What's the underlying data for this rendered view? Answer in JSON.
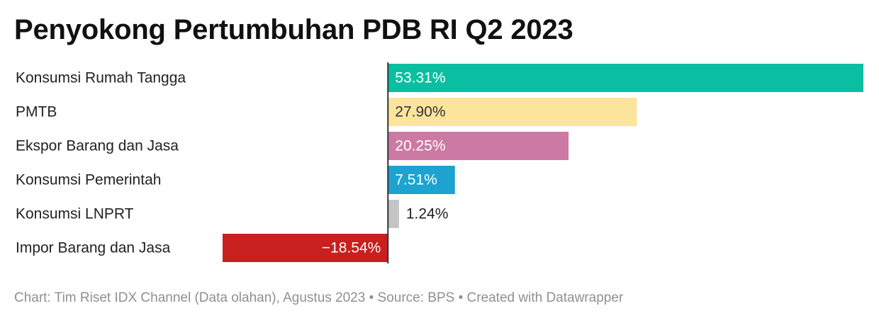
{
  "chart_data": {
    "type": "bar",
    "orientation": "horizontal",
    "title": "Penyokong Pertumbuhan PDB RI Q2 2023",
    "categories": [
      "Konsumsi Rumah Tangga",
      "PMTB",
      "Ekspor Barang dan Jasa",
      "Konsumsi Pemerintah",
      "Konsumsi LNPRT",
      "Impor Barang dan Jasa"
    ],
    "values": [
      53.31,
      27.9,
      20.25,
      7.51,
      1.24,
      -18.54
    ],
    "value_labels": [
      "53.31%",
      "27.90%",
      "20.25%",
      "7.51%",
      "1.24%",
      "−18.54%"
    ],
    "colors": [
      "#0abfa1",
      "#fde49c",
      "#cc7aa4",
      "#1da3cf",
      "#c4c4c4",
      "#c81f1f"
    ],
    "label_colors": [
      "#ffffff",
      "#333333",
      "#ffffff",
      "#ffffff",
      "#222222",
      "#ffffff"
    ],
    "xlim": [
      -18.54,
      53.31
    ],
    "grid": false,
    "legend": "none"
  },
  "footer": "Chart: Tim Riset IDX Channel (Data olahan), Agustus 2023 • Source: BPS • Created with Datawrapper"
}
